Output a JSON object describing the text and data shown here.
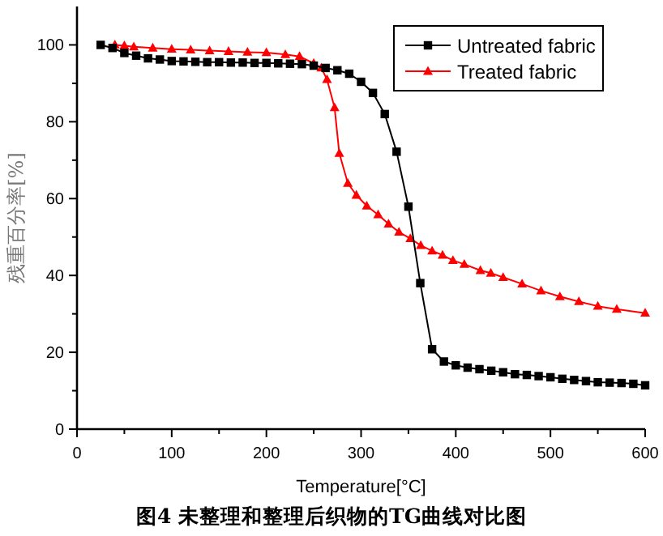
{
  "chart_data": {
    "type": "line",
    "xlabel": "Temperature[°C]",
    "ylabel": "残重百分率[%]",
    "annotations": [
      "图4 未整理和整理后织物的TG曲线对比图"
    ],
    "xlim": [
      0,
      600
    ],
    "xticks": [
      0,
      100,
      200,
      300,
      400,
      500,
      600
    ],
    "ylim": [
      0,
      110
    ],
    "yticks": [
      0,
      20,
      40,
      60,
      80,
      100
    ],
    "legend": "top right",
    "series": [
      {
        "name": "Untreated fabric",
        "color": "#000000",
        "marker": "square",
        "x": [
          25,
          37.5,
          50,
          62.5,
          75,
          87.5,
          100,
          112.5,
          125,
          137.5,
          150,
          162.5,
          175,
          187.5,
          200,
          212.5,
          225,
          237.5,
          250,
          262.5,
          275,
          287.5,
          300,
          312.5,
          325,
          337.5,
          350,
          362.5,
          375,
          387.5,
          400,
          412.5,
          425,
          437.5,
          450,
          462.5,
          475,
          487.5,
          500,
          512.5,
          525,
          537.5,
          550,
          562.5,
          575,
          587.5,
          600
        ],
        "values": [
          100,
          99.2,
          97.9,
          97.2,
          96.5,
          96.2,
          95.8,
          95.7,
          95.6,
          95.5,
          95.5,
          95.4,
          95.4,
          95.3,
          95.3,
          95.2,
          95.1,
          95.0,
          94.6,
          94.0,
          93.4,
          92.5,
          90.4,
          87.5,
          82.0,
          72.2,
          57.9,
          38.0,
          20.8,
          17.6,
          16.6,
          16.0,
          15.6,
          15.2,
          14.8,
          14.3,
          14.1,
          13.8,
          13.5,
          13.1,
          12.8,
          12.5,
          12.2,
          12.1,
          12.0,
          11.8,
          11.4
        ]
      },
      {
        "name": "Treated fabric",
        "color": "#ff0000",
        "marker": "triangle",
        "x": [
          40,
          50,
          60,
          80,
          100,
          120,
          140,
          160,
          180,
          200,
          220,
          235,
          250,
          258,
          264,
          272,
          277,
          286,
          295,
          306,
          318,
          329,
          340,
          352,
          363,
          375,
          386,
          397,
          409,
          426,
          437,
          450,
          470,
          490,
          510,
          530,
          550,
          570,
          600
        ],
        "values": [
          100.0,
          99.8,
          99.5,
          99.2,
          98.9,
          98.7,
          98.5,
          98.3,
          98.1,
          98.0,
          97.5,
          97.0,
          95.2,
          94.0,
          91.0,
          83.7,
          71.8,
          64.0,
          60.9,
          58.1,
          55.8,
          53.4,
          51.3,
          49.6,
          47.8,
          46.4,
          45.3,
          43.9,
          42.9,
          41.3,
          40.6,
          39.5,
          37.8,
          36.0,
          34.5,
          33.2,
          32.0,
          31.2,
          30.2
        ]
      }
    ]
  }
}
